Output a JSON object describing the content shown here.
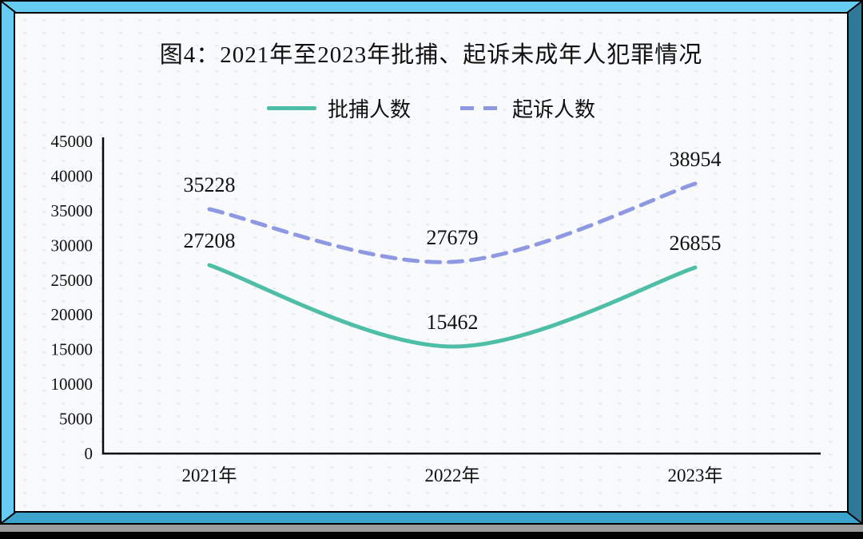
{
  "figure": {
    "title": "图4：2021年至2023年批捕、起诉未成年人犯罪情况"
  },
  "frame": {
    "top_color": "#66CCF2",
    "left_color": "#66CCF2",
    "right_color": "#2E7898",
    "bottom_color": "#3BA3CC",
    "shadow_gray": "#9C9C9C"
  },
  "chart_data": {
    "type": "line",
    "title": "图4：2021年至2023年批捕、起诉未成年人犯罪情况",
    "categories": [
      "2021年",
      "2022年",
      "2023年"
    ],
    "series": [
      {
        "name": "批捕人数",
        "values": [
          27208,
          15462,
          26855
        ],
        "color": "#4FBEA6",
        "line_style": "solid"
      },
      {
        "name": "起诉人数",
        "values": [
          35228,
          27679,
          38954
        ],
        "color": "#8F99E2",
        "line_style": "dashed"
      }
    ],
    "ylim": [
      0,
      45000
    ],
    "yticks": [
      45000,
      40000,
      35000,
      30000,
      25000,
      20000,
      15000,
      10000,
      5000,
      0
    ],
    "xlabel": "",
    "ylabel": "",
    "grid": false,
    "legend_position": "top",
    "data_labels": true,
    "curve": "smooth",
    "axis_color": "#0a0a0a",
    "text_color": "#101010"
  }
}
